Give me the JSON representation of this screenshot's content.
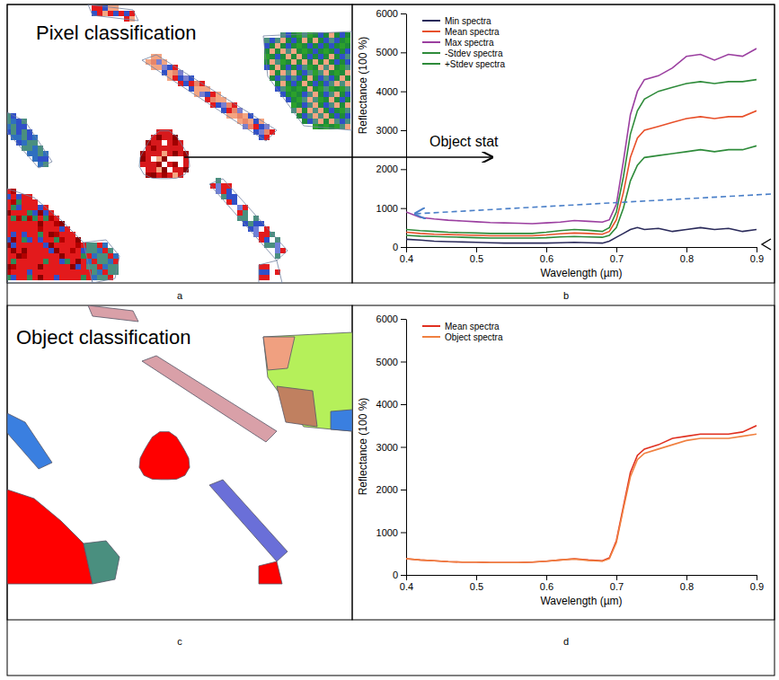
{
  "chart_data": [
    {
      "type": "map",
      "panel": "a",
      "title": "Pixel classification"
    },
    {
      "type": "line",
      "panel": "b",
      "x_label": "Wavelength (µm)",
      "y_label": "Reflectance (100 %)",
      "annotations": [
        "Object stat"
      ],
      "xlim": [
        0.4,
        0.9
      ],
      "xticks": [
        0.4,
        0.5,
        0.6,
        0.7,
        0.8,
        0.9
      ],
      "ylim": [
        0,
        6000
      ],
      "yticks": [
        0,
        1000,
        2000,
        3000,
        4000,
        5000,
        6000
      ],
      "legend": "upper left",
      "x": [
        0.4,
        0.42,
        0.44,
        0.46,
        0.48,
        0.5,
        0.52,
        0.54,
        0.56,
        0.58,
        0.6,
        0.62,
        0.64,
        0.66,
        0.68,
        0.69,
        0.7,
        0.71,
        0.72,
        0.73,
        0.74,
        0.76,
        0.78,
        0.8,
        0.82,
        0.84,
        0.86,
        0.88,
        0.9
      ],
      "series": [
        {
          "name": "Min spectra",
          "color": "#2a2a5a",
          "values": [
            200,
            180,
            150,
            140,
            130,
            120,
            110,
            100,
            100,
            100,
            100,
            110,
            120,
            110,
            100,
            150,
            250,
            350,
            450,
            500,
            450,
            480,
            400,
            450,
            500,
            450,
            480,
            400,
            450
          ]
        },
        {
          "name": "Mean spectra",
          "color": "#e8502a",
          "values": [
            380,
            350,
            330,
            320,
            310,
            300,
            290,
            290,
            290,
            290,
            310,
            340,
            360,
            350,
            330,
            400,
            700,
            1400,
            2300,
            2800,
            3000,
            3100,
            3200,
            3300,
            3350,
            3300,
            3350,
            3350,
            3500
          ]
        },
        {
          "name": "Max spectra",
          "color": "#9b3fa0",
          "values": [
            900,
            760,
            720,
            690,
            670,
            650,
            630,
            620,
            610,
            600,
            620,
            640,
            680,
            660,
            640,
            700,
            1100,
            2200,
            3400,
            4000,
            4300,
            4400,
            4600,
            4900,
            4950,
            4800,
            4950,
            4900,
            5100
          ]
        },
        {
          "name": "-Stdev spectra",
          "color": "#2e8b3a",
          "values": [
            300,
            280,
            270,
            260,
            250,
            240,
            230,
            230,
            230,
            230,
            240,
            260,
            270,
            260,
            250,
            300,
            500,
            1000,
            1700,
            2100,
            2300,
            2350,
            2400,
            2450,
            2500,
            2450,
            2500,
            2500,
            2600
          ]
        },
        {
          "name": "+Stdev spectra",
          "color": "#2e8b3a",
          "values": [
            450,
            420,
            400,
            380,
            370,
            360,
            350,
            350,
            350,
            350,
            380,
            420,
            450,
            430,
            400,
            500,
            900,
            1800,
            2900,
            3500,
            3800,
            4000,
            4100,
            4200,
            4250,
            4200,
            4250,
            4250,
            4300
          ]
        }
      ]
    },
    {
      "type": "map",
      "panel": "c",
      "title": "Object classification"
    },
    {
      "type": "line",
      "panel": "d",
      "x_label": "Wavelength (µm)",
      "y_label": "Reflectance (100 %)",
      "xlim": [
        0.4,
        0.9
      ],
      "xticks": [
        0.4,
        0.5,
        0.6,
        0.7,
        0.8,
        0.9
      ],
      "ylim": [
        0,
        6000
      ],
      "yticks": [
        0,
        1000,
        2000,
        3000,
        4000,
        5000,
        6000
      ],
      "legend": "upper left",
      "x": [
        0.4,
        0.42,
        0.44,
        0.46,
        0.48,
        0.5,
        0.52,
        0.54,
        0.56,
        0.58,
        0.6,
        0.62,
        0.64,
        0.66,
        0.68,
        0.69,
        0.7,
        0.71,
        0.72,
        0.73,
        0.74,
        0.76,
        0.78,
        0.8,
        0.82,
        0.84,
        0.86,
        0.88,
        0.9
      ],
      "series": [
        {
          "name": "Mean spectra",
          "color": "#e03020",
          "values": [
            380,
            350,
            330,
            310,
            300,
            300,
            290,
            290,
            290,
            300,
            320,
            350,
            380,
            350,
            330,
            400,
            800,
            1600,
            2400,
            2800,
            2950,
            3050,
            3200,
            3250,
            3300,
            3300,
            3300,
            3350,
            3500
          ]
        },
        {
          "name": "Object spectra",
          "color": "#f08040",
          "values": [
            380,
            350,
            330,
            310,
            300,
            300,
            290,
            290,
            290,
            300,
            320,
            350,
            370,
            340,
            320,
            380,
            760,
            1550,
            2300,
            2700,
            2850,
            2950,
            3050,
            3150,
            3200,
            3200,
            3200,
            3250,
            3300
          ]
        }
      ]
    }
  ]
}
